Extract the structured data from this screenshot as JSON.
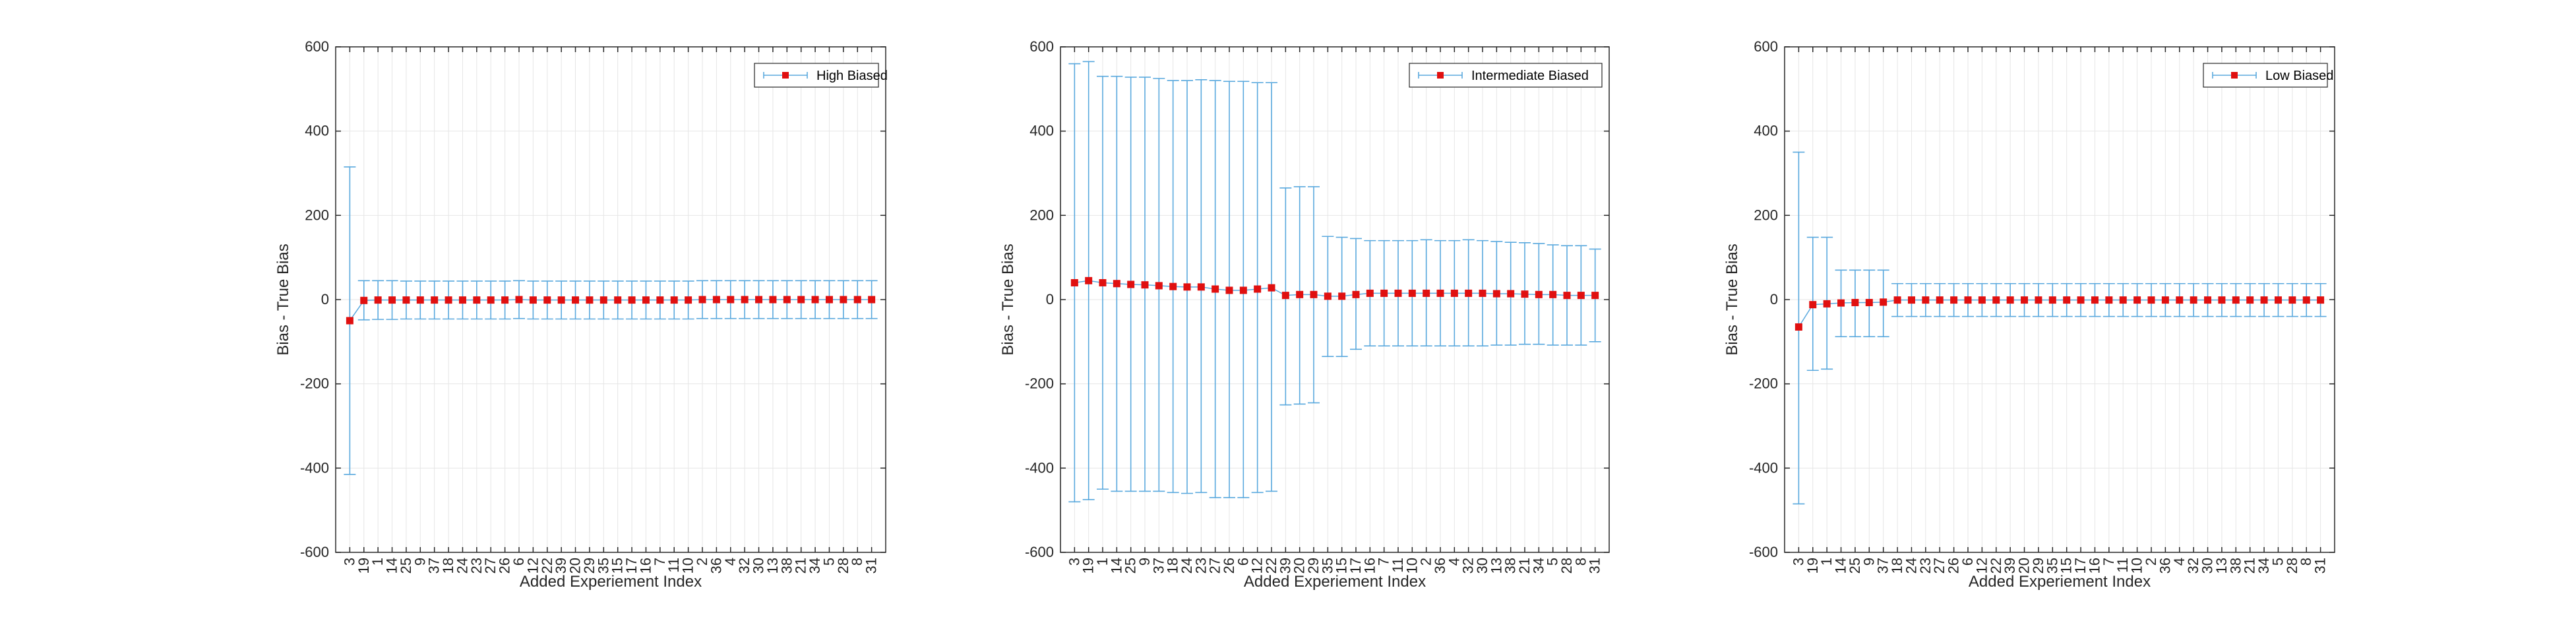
{
  "figure": {
    "background": "#ffffff"
  },
  "style": {
    "errorbar_color": "#5aa9de",
    "marker_color": "#e01010",
    "line_color": "#5aa9de",
    "grid_color": "#e6e6e6",
    "axis_color": "#262626"
  },
  "chart_data": [
    {
      "type": "line",
      "subtype": "errorbar",
      "xlabel": "Added Experiement Index",
      "ylabel": "Bias - True Bias",
      "ylim": [
        -600,
        600
      ],
      "yticks": [
        -600,
        -400,
        -200,
        0,
        200,
        400,
        600
      ],
      "grid": true,
      "legend_position": "top-right",
      "categories": [
        "3",
        "19",
        "1",
        "14",
        "25",
        "9",
        "37",
        "18",
        "24",
        "23",
        "27",
        "26",
        "6",
        "12",
        "22",
        "39",
        "20",
        "29",
        "35",
        "15",
        "17",
        "16",
        "7",
        "11",
        "10",
        "2",
        "36",
        "4",
        "32",
        "30",
        "13",
        "38",
        "21",
        "34",
        "5",
        "28",
        "8",
        "31"
      ],
      "series": [
        {
          "name": "High Biased",
          "values": [
            -50,
            -2,
            -1,
            -1,
            -1,
            -1,
            -1,
            -1,
            -1,
            -1,
            -1,
            -1,
            0,
            -1,
            -1,
            -1,
            -1,
            -1,
            -1,
            -1,
            -1,
            -1,
            -1,
            -1,
            -1,
            0,
            0,
            0,
            0,
            0,
            0,
            0,
            0,
            0,
            0,
            0,
            0,
            0
          ],
          "upper": [
            315,
            45,
            45,
            45,
            44,
            44,
            44,
            44,
            44,
            44,
            44,
            44,
            45,
            44,
            44,
            44,
            44,
            44,
            44,
            44,
            44,
            44,
            44,
            44,
            44,
            45,
            45,
            45,
            45,
            45,
            45,
            45,
            45,
            45,
            45,
            45,
            45,
            45
          ],
          "lower": [
            -415,
            -48,
            -47,
            -47,
            -46,
            -46,
            -46,
            -46,
            -46,
            -46,
            -46,
            -46,
            -45,
            -46,
            -46,
            -46,
            -46,
            -46,
            -46,
            -46,
            -46,
            -46,
            -46,
            -46,
            -46,
            -45,
            -45,
            -45,
            -45,
            -45,
            -45,
            -45,
            -45,
            -45,
            -45,
            -45,
            -45,
            -45
          ]
        }
      ]
    },
    {
      "type": "line",
      "subtype": "errorbar",
      "xlabel": "Added Experiement Index",
      "ylabel": "Bias - True Bias",
      "ylim": [
        -600,
        600
      ],
      "yticks": [
        -600,
        -400,
        -200,
        0,
        200,
        400,
        600
      ],
      "grid": true,
      "legend_position": "top-right",
      "categories": [
        "3",
        "19",
        "1",
        "14",
        "25",
        "9",
        "37",
        "18",
        "24",
        "23",
        "27",
        "26",
        "6",
        "12",
        "22",
        "39",
        "20",
        "29",
        "35",
        "15",
        "17",
        "16",
        "7",
        "11",
        "10",
        "2",
        "36",
        "4",
        "32",
        "30",
        "13",
        "38",
        "21",
        "34",
        "5",
        "28",
        "8",
        "31"
      ],
      "series": [
        {
          "name": "Intermediate Biased",
          "values": [
            40,
            45,
            40,
            38,
            36,
            35,
            33,
            31,
            30,
            30,
            25,
            22,
            22,
            25,
            28,
            10,
            12,
            12,
            8,
            8,
            12,
            15,
            15,
            15,
            15,
            15,
            15,
            15,
            15,
            15,
            14,
            14,
            13,
            12,
            12,
            10,
            10,
            10
          ],
          "upper": [
            560,
            565,
            530,
            530,
            528,
            528,
            525,
            520,
            520,
            522,
            520,
            518,
            518,
            515,
            515,
            265,
            268,
            268,
            150,
            148,
            145,
            140,
            140,
            140,
            140,
            142,
            140,
            140,
            142,
            140,
            138,
            136,
            135,
            133,
            130,
            128,
            128,
            120
          ],
          "lower": [
            -480,
            -475,
            -450,
            -455,
            -455,
            -455,
            -455,
            -458,
            -460,
            -458,
            -470,
            -470,
            -470,
            -458,
            -455,
            -250,
            -248,
            -245,
            -135,
            -135,
            -118,
            -110,
            -110,
            -110,
            -110,
            -110,
            -110,
            -110,
            -110,
            -110,
            -108,
            -108,
            -106,
            -106,
            -108,
            -108,
            -108,
            -100
          ]
        }
      ]
    },
    {
      "type": "line",
      "subtype": "errorbar",
      "xlabel": "Added Experiement Index",
      "ylabel": "Bias - True Bias",
      "ylim": [
        -600,
        600
      ],
      "yticks": [
        -600,
        -400,
        -200,
        0,
        200,
        400,
        600
      ],
      "grid": true,
      "legend_position": "top-right",
      "categories": [
        "3",
        "19",
        "1",
        "14",
        "25",
        "9",
        "37",
        "18",
        "24",
        "23",
        "27",
        "26",
        "6",
        "12",
        "22",
        "39",
        "20",
        "29",
        "35",
        "15",
        "17",
        "16",
        "7",
        "11",
        "10",
        "2",
        "36",
        "4",
        "32",
        "30",
        "13",
        "38",
        "21",
        "34",
        "5",
        "28",
        "8",
        "31"
      ],
      "series": [
        {
          "name": "Low Biased",
          "values": [
            -65,
            -12,
            -10,
            -8,
            -7,
            -7,
            -6,
            -1,
            -1,
            -1,
            -1,
            -1,
            -1,
            -1,
            -1,
            -1,
            -1,
            -1,
            -1,
            -1,
            -1,
            -1,
            -1,
            -1,
            -1,
            -1,
            -1,
            -1,
            -1,
            -1,
            -1,
            -1,
            -1,
            -1,
            -1,
            -1,
            -1,
            -1
          ],
          "upper": [
            350,
            148,
            148,
            70,
            70,
            70,
            70,
            38,
            38,
            38,
            38,
            38,
            38,
            38,
            38,
            38,
            38,
            38,
            38,
            38,
            38,
            38,
            38,
            38,
            38,
            38,
            38,
            38,
            38,
            38,
            38,
            38,
            38,
            38,
            38,
            38,
            38,
            38
          ],
          "lower": [
            -485,
            -168,
            -165,
            -88,
            -88,
            -88,
            -88,
            -40,
            -40,
            -40,
            -40,
            -40,
            -40,
            -40,
            -40,
            -40,
            -40,
            -40,
            -40,
            -40,
            -40,
            -40,
            -40,
            -40,
            -40,
            -40,
            -40,
            -40,
            -40,
            -40,
            -40,
            -40,
            -40,
            -40,
            -40,
            -40,
            -40,
            -40
          ]
        }
      ]
    }
  ]
}
